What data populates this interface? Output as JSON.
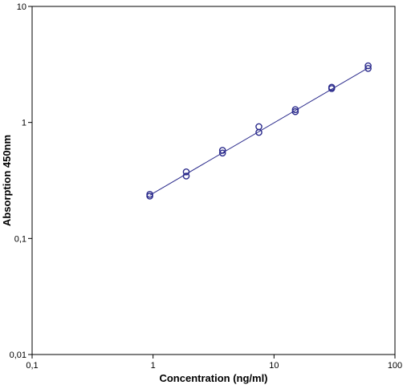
{
  "chart_data": {
    "type": "scatter",
    "title": "",
    "xlabel": "Concentration (ng/ml)",
    "ylabel": "Absorption 450nm",
    "xscale": "log",
    "yscale": "log",
    "xlim": [
      0.1,
      100
    ],
    "ylim": [
      0.01,
      10
    ],
    "x_ticks": [
      "0,1",
      "1",
      "10",
      "100"
    ],
    "y_ticks": [
      "0,01",
      "0,1",
      "1",
      "10"
    ],
    "x_tick_values": [
      0.1,
      1,
      10,
      100
    ],
    "y_tick_values": [
      0.01,
      0.1,
      1,
      10
    ],
    "grid": false,
    "legend": "none",
    "series": [
      {
        "marker": "open-circle",
        "color": "#2b2b8c",
        "points": [
          [
            0.94,
            0.232
          ],
          [
            0.94,
            0.24
          ],
          [
            1.88,
            0.345
          ],
          [
            1.88,
            0.375
          ],
          [
            3.75,
            0.545
          ],
          [
            3.75,
            0.575
          ],
          [
            7.5,
            0.82
          ],
          [
            7.5,
            0.92
          ],
          [
            15,
            1.24
          ],
          [
            15,
            1.29
          ],
          [
            30,
            1.96
          ],
          [
            30,
            2.01
          ],
          [
            60,
            2.92
          ],
          [
            60,
            3.08
          ]
        ]
      }
    ],
    "fit_line": {
      "color": "#2b2b8c",
      "points": [
        [
          0.94,
          0.236
        ],
        [
          60,
          2.95
        ]
      ]
    }
  }
}
